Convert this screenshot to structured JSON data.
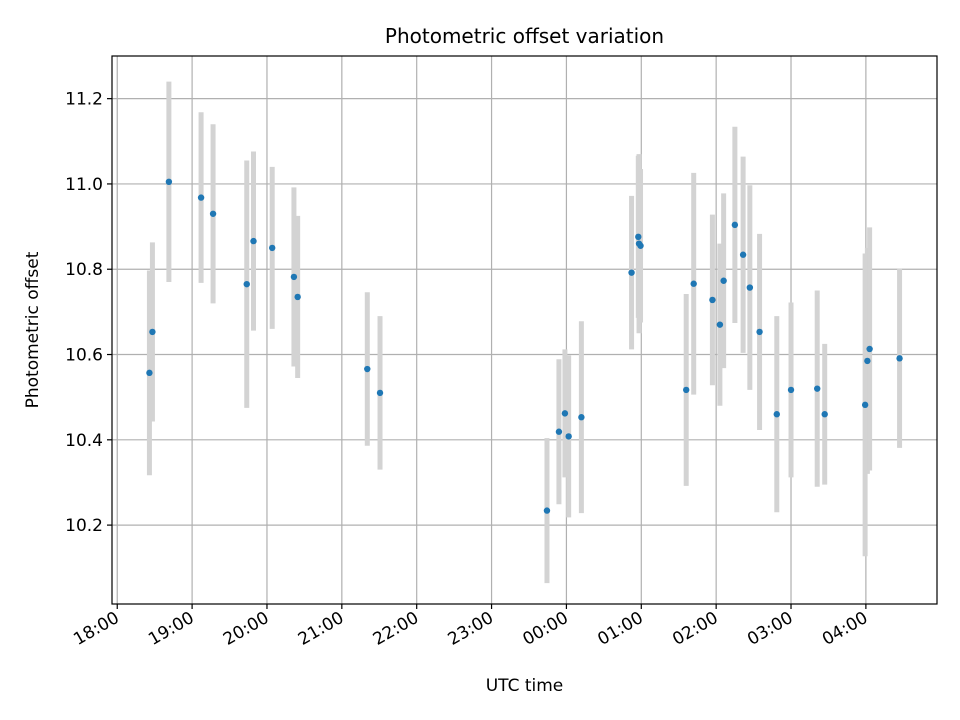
{
  "chart_data": {
    "type": "scatter",
    "title": "Photometric offset variation",
    "xlabel": "UTC time",
    "ylabel": "Photometric offset",
    "x_ticks": [
      "18:00",
      "19:00",
      "20:00",
      "21:00",
      "22:00",
      "23:00",
      "00:00",
      "01:00",
      "02:00",
      "03:00",
      "04:00"
    ],
    "y_ticks": [
      "10.2",
      "10.4",
      "10.6",
      "10.8",
      "11.0",
      "11.2"
    ],
    "x_units": "hours after 18:00 UTC",
    "xlim": [
      -0.07,
      10.95
    ],
    "ylim": [
      10.015,
      11.3
    ],
    "grid": true,
    "colors": {
      "point": "#1f77b4",
      "errorbar": "#d3d3d3",
      "grid": "#b0b0b0"
    },
    "points": [
      {
        "x": 0.43,
        "y": 10.557,
        "err": 0.24
      },
      {
        "x": 0.47,
        "y": 10.653,
        "err": 0.21
      },
      {
        "x": 0.69,
        "y": 11.005,
        "err": 0.235
      },
      {
        "x": 1.12,
        "y": 10.968,
        "err": 0.2
      },
      {
        "x": 1.28,
        "y": 10.93,
        "err": 0.21
      },
      {
        "x": 1.73,
        "y": 10.765,
        "err": 0.29
      },
      {
        "x": 1.82,
        "y": 10.866,
        "err": 0.21
      },
      {
        "x": 2.07,
        "y": 10.85,
        "err": 0.19
      },
      {
        "x": 2.36,
        "y": 10.782,
        "err": 0.21
      },
      {
        "x": 2.41,
        "y": 10.735,
        "err": 0.19
      },
      {
        "x": 3.34,
        "y": 10.566,
        "err": 0.18
      },
      {
        "x": 3.51,
        "y": 10.51,
        "err": 0.18
      },
      {
        "x": 5.74,
        "y": 10.234,
        "err": 0.17
      },
      {
        "x": 5.9,
        "y": 10.419,
        "err": 0.17
      },
      {
        "x": 5.98,
        "y": 10.462,
        "err": 0.15
      },
      {
        "x": 6.03,
        "y": 10.408,
        "err": 0.19
      },
      {
        "x": 6.2,
        "y": 10.453,
        "err": 0.225
      },
      {
        "x": 6.87,
        "y": 10.792,
        "err": 0.18
      },
      {
        "x": 6.96,
        "y": 10.876,
        "err": 0.19
      },
      {
        "x": 6.97,
        "y": 10.86,
        "err": 0.21
      },
      {
        "x": 6.99,
        "y": 10.855,
        "err": 0.18
      },
      {
        "x": 7.6,
        "y": 10.517,
        "err": 0.225
      },
      {
        "x": 7.7,
        "y": 10.766,
        "err": 0.26
      },
      {
        "x": 7.95,
        "y": 10.728,
        "err": 0.2
      },
      {
        "x": 8.05,
        "y": 10.67,
        "err": 0.19
      },
      {
        "x": 8.1,
        "y": 10.773,
        "err": 0.205
      },
      {
        "x": 8.25,
        "y": 10.904,
        "err": 0.23
      },
      {
        "x": 8.36,
        "y": 10.834,
        "err": 0.23
      },
      {
        "x": 8.45,
        "y": 10.757,
        "err": 0.24
      },
      {
        "x": 8.58,
        "y": 10.653,
        "err": 0.23
      },
      {
        "x": 8.81,
        "y": 10.46,
        "err": 0.23
      },
      {
        "x": 9.0,
        "y": 10.517,
        "err": 0.205
      },
      {
        "x": 9.35,
        "y": 10.52,
        "err": 0.23
      },
      {
        "x": 9.45,
        "y": 10.46,
        "err": 0.165
      },
      {
        "x": 9.99,
        "y": 10.482,
        "err": 0.355
      },
      {
        "x": 10.02,
        "y": 10.585,
        "err": 0.265
      },
      {
        "x": 10.05,
        "y": 10.613,
        "err": 0.285
      },
      {
        "x": 10.45,
        "y": 10.591,
        "err": 0.21
      }
    ]
  }
}
